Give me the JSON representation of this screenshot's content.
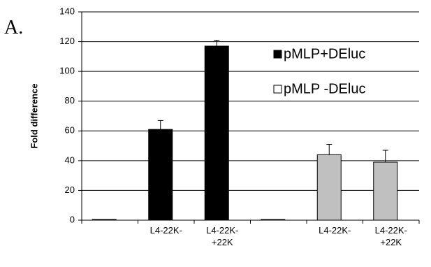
{
  "panel_label": "A.",
  "chart_data": {
    "type": "bar",
    "y_label": "Fold difference",
    "categories": [
      null,
      "L4-22K-",
      "L4-22K-\n+22K",
      null,
      "L4-22K-",
      "L4-22K-\n+22K"
    ],
    "series": [
      {
        "name": "pMLP+DEluc",
        "color": "#000000",
        "values": [
          0.5,
          61,
          117,
          null,
          null,
          null
        ],
        "errors": [
          null,
          6,
          4,
          null,
          null,
          null
        ]
      },
      {
        "name": "pMLP -DEluc",
        "color": "#c0c0c0",
        "values": [
          null,
          null,
          null,
          0.5,
          44,
          39
        ],
        "errors": [
          null,
          null,
          null,
          null,
          7,
          8
        ]
      }
    ],
    "ylim": [
      0,
      140
    ],
    "yticks": [
      0,
      20,
      40,
      60,
      80,
      100,
      120,
      140
    ],
    "grid": true,
    "legend": "upper right"
  }
}
